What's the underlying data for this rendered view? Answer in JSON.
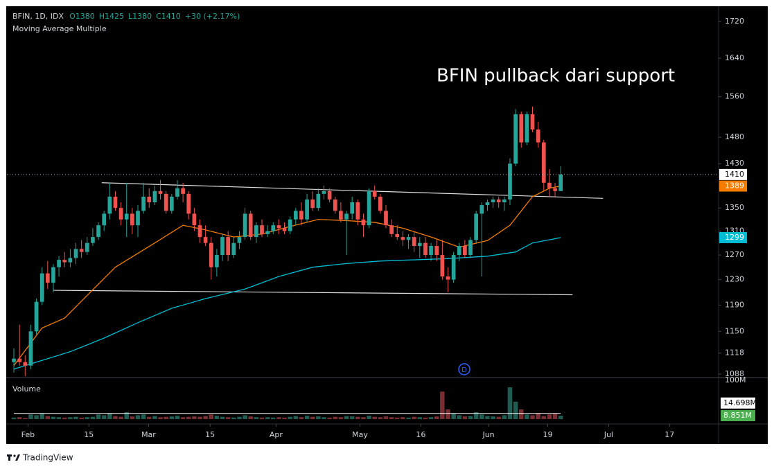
{
  "chart_data": {
    "type": "candlestick",
    "title": "BFIN, 1D, IDX",
    "legend": [
      "O1380",
      "H1425",
      "L1380",
      "C1410",
      "+30 (+2.17%)"
    ],
    "indicator": "Moving Average Multiple",
    "annotation": "BFIN pullback dari support",
    "dividend_marker": "D",
    "footer": "TradingView",
    "up_color": "#26a69a",
    "down_color": "#ef5350",
    "log_scale": true,
    "grid": false,
    "ylim": [
      1083,
      1753
    ],
    "yticks": [
      1088,
      1118,
      1150,
      1190,
      1230,
      1270,
      1310,
      1350,
      1430,
      1480,
      1560,
      1640,
      1720
    ],
    "xlim": [
      -1.23,
      125.0
    ],
    "xticks": [
      {
        "value": 2.5,
        "label": "Feb"
      },
      {
        "value": 13.3,
        "label": "15"
      },
      {
        "value": 23.9,
        "label": "Mar"
      },
      {
        "value": 34.8,
        "label": "15"
      },
      {
        "value": 46.5,
        "label": "Apr"
      },
      {
        "value": 61.4,
        "label": "May"
      },
      {
        "value": 72.2,
        "label": "16"
      },
      {
        "value": 84.2,
        "label": "Jun"
      },
      {
        "value": 94.7,
        "label": "19"
      },
      {
        "value": 105.5,
        "label": "Jul"
      },
      {
        "value": 116.3,
        "label": "17"
      }
    ],
    "open": [
      1105,
      1110,
      1105,
      1100,
      1150,
      1195,
      1240,
      1225,
      1250,
      1262,
      1258,
      1265,
      1280,
      1275,
      1290,
      1300,
      1320,
      1340,
      1370,
      1350,
      1330,
      1340,
      1320,
      1345,
      1370,
      1360,
      1380,
      1375,
      1345,
      1370,
      1385,
      1375,
      1340,
      1320,
      1300,
      1290,
      1250,
      1270,
      1300,
      1270,
      1290,
      1300,
      1340,
      1300,
      1320,
      1305,
      1310,
      1320,
      1315,
      1310,
      1330,
      1345,
      1330,
      1365,
      1350,
      1375,
      1380,
      1365,
      1345,
      1330,
      1340,
      1360,
      1330,
      1320,
      1380,
      1370,
      1345,
      1320,
      1305,
      1300,
      1295,
      1300,
      1285,
      1290,
      1270,
      1285,
      1270,
      1235,
      1230,
      1270,
      1285,
      1270,
      1295,
      1340,
      1355,
      1360,
      1365,
      1360,
      1365,
      1430,
      1525,
      1470,
      1525,
      1495,
      1470,
      1395,
      1385,
      1380
    ],
    "high": [
      1125,
      1160,
      1115,
      1160,
      1200,
      1250,
      1260,
      1255,
      1268,
      1275,
      1280,
      1290,
      1295,
      1300,
      1315,
      1325,
      1345,
      1395,
      1380,
      1360,
      1395,
      1350,
      1355,
      1395,
      1385,
      1390,
      1400,
      1380,
      1375,
      1400,
      1395,
      1380,
      1350,
      1330,
      1320,
      1300,
      1280,
      1305,
      1310,
      1300,
      1310,
      1350,
      1345,
      1325,
      1330,
      1320,
      1325,
      1330,
      1325,
      1335,
      1350,
      1360,
      1375,
      1380,
      1385,
      1390,
      1385,
      1370,
      1360,
      1345,
      1370,
      1365,
      1340,
      1385,
      1390,
      1375,
      1355,
      1330,
      1320,
      1310,
      1305,
      1310,
      1300,
      1300,
      1290,
      1295,
      1295,
      1250,
      1275,
      1290,
      1295,
      1300,
      1345,
      1360,
      1365,
      1370,
      1370,
      1370,
      1440,
      1535,
      1530,
      1530,
      1540,
      1510,
      1475,
      1420,
      1395,
      1425
    ],
    "low": [
      1090,
      1100,
      1085,
      1095,
      1145,
      1190,
      1215,
      1210,
      1235,
      1250,
      1250,
      1255,
      1265,
      1270,
      1285,
      1295,
      1310,
      1330,
      1345,
      1320,
      1300,
      1305,
      1300,
      1340,
      1350,
      1355,
      1365,
      1340,
      1340,
      1365,
      1360,
      1330,
      1310,
      1290,
      1285,
      1230,
      1235,
      1260,
      1260,
      1265,
      1280,
      1295,
      1295,
      1290,
      1300,
      1300,
      1305,
      1305,
      1305,
      1305,
      1320,
      1320,
      1325,
      1345,
      1345,
      1365,
      1360,
      1340,
      1325,
      1270,
      1330,
      1320,
      1300,
      1315,
      1365,
      1340,
      1315,
      1300,
      1295,
      1285,
      1280,
      1275,
      1265,
      1265,
      1260,
      1260,
      1230,
      1210,
      1225,
      1260,
      1265,
      1265,
      1290,
      1235,
      1345,
      1350,
      1350,
      1345,
      1355,
      1425,
      1460,
      1465,
      1490,
      1460,
      1380,
      1370,
      1370,
      1380
    ],
    "close": [
      1110,
      1105,
      1100,
      1150,
      1195,
      1240,
      1225,
      1250,
      1262,
      1258,
      1265,
      1280,
      1275,
      1290,
      1300,
      1320,
      1340,
      1370,
      1350,
      1330,
      1340,
      1320,
      1345,
      1370,
      1360,
      1380,
      1375,
      1345,
      1370,
      1385,
      1375,
      1340,
      1320,
      1300,
      1290,
      1250,
      1270,
      1300,
      1270,
      1290,
      1300,
      1340,
      1300,
      1320,
      1305,
      1310,
      1320,
      1315,
      1310,
      1330,
      1345,
      1330,
      1365,
      1350,
      1375,
      1380,
      1365,
      1345,
      1330,
      1340,
      1360,
      1330,
      1320,
      1380,
      1370,
      1345,
      1320,
      1305,
      1300,
      1295,
      1300,
      1285,
      1290,
      1270,
      1285,
      1270,
      1235,
      1230,
      1270,
      1285,
      1270,
      1295,
      1340,
      1355,
      1360,
      1365,
      1360,
      1365,
      1430,
      1525,
      1470,
      1525,
      1495,
      1470,
      1395,
      1385,
      1380,
      1410
    ],
    "moving_averages": [
      {
        "color": "#f57c00",
        "x": [
          0,
          5,
          9,
          13,
          18,
          25,
          30,
          34,
          39,
          44,
          49,
          54,
          59,
          64,
          69,
          74,
          79,
          84,
          88,
          92,
          95,
          97
        ],
        "values": [
          1100,
          1155,
          1170,
          1205,
          1250,
          1290,
          1320,
          1312,
          1300,
          1305,
          1318,
          1330,
          1328,
          1325,
          1315,
          1300,
          1283,
          1294,
          1320,
          1370,
          1385,
          1389
        ]
      },
      {
        "color": "#00bcd4",
        "x": [
          0,
          10,
          16,
          22,
          28,
          34,
          41,
          47,
          53,
          59,
          65,
          71,
          77,
          84,
          89,
          92,
          97
        ],
        "values": [
          1095,
          1120,
          1140,
          1163,
          1185,
          1200,
          1215,
          1235,
          1250,
          1256,
          1260,
          1262,
          1264,
          1268,
          1275,
          1290,
          1299
        ]
      }
    ],
    "trendlines": [
      {
        "color": "#e0e0e0",
        "x": [
          15.6,
          104.5
        ],
        "values": [
          1395,
          1367
        ]
      },
      {
        "color": "#e0e0e0",
        "x": [
          7,
          99.1
        ],
        "values": [
          1213,
          1206
        ]
      }
    ],
    "last_labels": [
      {
        "value": 1410,
        "color": "#ffffff",
        "text_color": "#000000"
      },
      {
        "value": 1389,
        "color": "#f57c00",
        "text_color": "#ffffff"
      },
      {
        "value": 1299,
        "color": "#00bcd4",
        "text_color": "#ffffff"
      }
    ],
    "volume": {
      "title": "Volume",
      "up_color": "#1f5c52",
      "down_color": "#7a2d31",
      "ylim": [
        0,
        100
      ],
      "yticks": [
        {
          "value": 100,
          "label": "100M"
        }
      ],
      "values": [
        4,
        5,
        3,
        12,
        10,
        15,
        8,
        6,
        5,
        4,
        5,
        6,
        4,
        5,
        6,
        12,
        10,
        14,
        8,
        6,
        18,
        7,
        10,
        12,
        6,
        8,
        5,
        6,
        7,
        9,
        5,
        6,
        7,
        6,
        8,
        12,
        9,
        6,
        5,
        4,
        6,
        10,
        7,
        5,
        4,
        5,
        4,
        5,
        4,
        6,
        8,
        5,
        9,
        6,
        7,
        5,
        4,
        6,
        5,
        8,
        7,
        6,
        5,
        9,
        6,
        5,
        7,
        5,
        4,
        5,
        4,
        6,
        5,
        4,
        5,
        7,
        71,
        25,
        15,
        10,
        7,
        8,
        18,
        12,
        8,
        7,
        6,
        10,
        82,
        45,
        25,
        12,
        10,
        15,
        8,
        12,
        14,
        8.851
      ],
      "ma": {
        "value": 14.698,
        "label": "14.698M",
        "color": "#ffffff",
        "text_color": "#000000"
      },
      "last": {
        "value": 8.851,
        "label": "8.851M",
        "color": "#4caf50",
        "text_color": "#ffffff"
      }
    }
  }
}
